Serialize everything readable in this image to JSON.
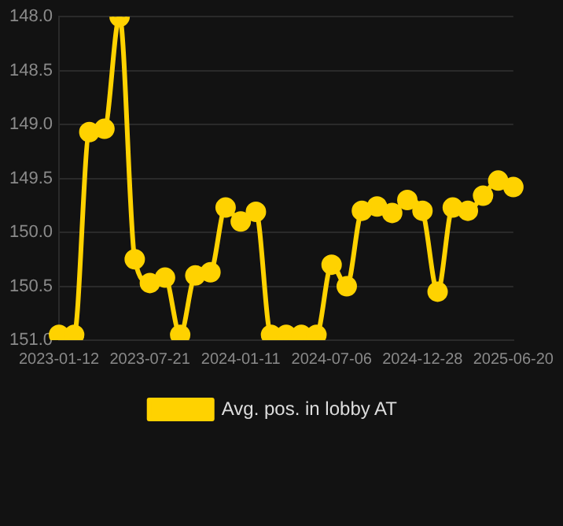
{
  "chart_data": {
    "type": "line",
    "categories": [
      "2023-01-12",
      null,
      null,
      null,
      null,
      null,
      "2023-07-21",
      null,
      null,
      null,
      null,
      null,
      "2024-01-11",
      null,
      null,
      null,
      null,
      null,
      "2024-07-06",
      null,
      null,
      null,
      null,
      null,
      "2024-12-28",
      null,
      null,
      null,
      null,
      null,
      "2025-06-20"
    ],
    "series": [
      {
        "name": "Avg. pos. in lobby AT",
        "color": "#ffd200",
        "values": [
          150.95,
          150.95,
          149.07,
          149.04,
          148.0,
          150.25,
          150.47,
          150.42,
          150.95,
          150.4,
          150.37,
          149.77,
          149.9,
          149.81,
          150.95,
          150.95,
          150.95,
          150.95,
          150.3,
          150.5,
          149.8,
          149.76,
          149.82,
          149.7,
          149.8,
          150.55,
          149.77,
          149.8,
          149.66,
          149.52,
          149.58
        ]
      }
    ],
    "ylim": [
      151.0,
      148.0
    ],
    "yticks": [
      {
        "value": 151,
        "label": "151.0"
      },
      {
        "value": 150.5,
        "label": "150.5"
      },
      {
        "value": 150,
        "label": "150.0"
      },
      {
        "value": 149.5,
        "label": "149.5"
      },
      {
        "value": 149,
        "label": "149.0"
      },
      {
        "value": 148.5,
        "label": "148.5"
      },
      {
        "value": 148,
        "label": "148.0"
      }
    ],
    "grid": true,
    "legend": "bottom",
    "marker": "circle",
    "line_style": "solid"
  }
}
